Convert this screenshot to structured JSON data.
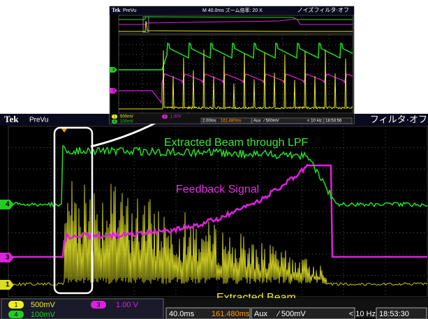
{
  "main": {
    "brand": "Tek",
    "mode": "PreVu",
    "header_right": "フィルタ·オフ",
    "trace_labels": {
      "green": "Extracted Beam through LPF",
      "magenta": "Feedback Signal",
      "yellow": "Extracted Beam"
    },
    "channel_markers": {
      "ch4": "4",
      "ch3": "3",
      "ch1": "1"
    },
    "status": {
      "ch1": {
        "badge": "1",
        "scale": "500mV"
      },
      "ch3": {
        "badge": "3",
        "scale": "1.00 V"
      },
      "ch4": {
        "badge": "4",
        "scale": "100mV"
      },
      "timebase": "40.0ms",
      "position": "161.480ms",
      "trigger_source": "Aux",
      "trigger_level": "∕ 500mV",
      "frequency": "< 10 Hz",
      "clock": "18:53:30"
    }
  },
  "inset": {
    "brand": "Tek",
    "mode": "PreVu",
    "zoom_info": "M 40.0ms ズーム倍率: 20 X",
    "header_right": "ノイズフィルタ·オフ",
    "channel_markers": {
      "ch4": "4",
      "ch3": "3"
    },
    "status": {
      "ch1": {
        "badge": "1",
        "scale": "500mV"
      },
      "ch3": {
        "badge": "3",
        "scale": "1.00V"
      },
      "ch4": {
        "badge": "4",
        "scale": "100mV"
      },
      "timebase": "2.00ms",
      "position": "161.480ms",
      "trigger_source": "Aux",
      "trigger_level": "∕ 500mV",
      "frequency": "< 10 Hz",
      "clock": "18:53:56"
    }
  }
}
